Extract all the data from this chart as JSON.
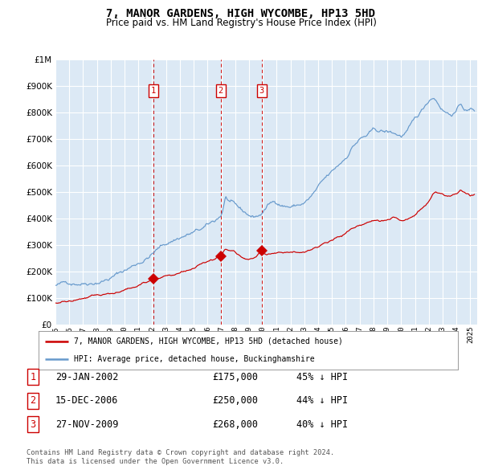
{
  "title": "7, MANOR GARDENS, HIGH WYCOMBE, HP13 5HD",
  "subtitle": "Price paid vs. HM Land Registry's House Price Index (HPI)",
  "footer": "Contains HM Land Registry data © Crown copyright and database right 2024.\nThis data is licensed under the Open Government Licence v3.0.",
  "legend_line1": "7, MANOR GARDENS, HIGH WYCOMBE, HP13 5HD (detached house)",
  "legend_line2": "HPI: Average price, detached house, Buckinghamshire",
  "transactions": [
    {
      "num": 1,
      "date": "29-JAN-2002",
      "price": 175000,
      "pct": "45%",
      "dir": "↓",
      "x_year": 2002.08
    },
    {
      "num": 2,
      "date": "15-DEC-2006",
      "price": 250000,
      "pct": "44%",
      "dir": "↓",
      "x_year": 2006.96
    },
    {
      "num": 3,
      "date": "27-NOV-2009",
      "price": 268000,
      "pct": "40%",
      "dir": "↓",
      "x_year": 2009.91
    }
  ],
  "hpi_color": "#6699cc",
  "sale_color": "#cc0000",
  "vline_color": "#cc0000",
  "plot_bg": "#dce9f5",
  "grid_color": "#c8d8e8",
  "ylim": [
    0,
    1000000
  ],
  "xlim_start": 1995.0,
  "xlim_end": 2025.5,
  "hpi_anchors": [
    [
      1995.0,
      148000
    ],
    [
      1995.5,
      152000
    ],
    [
      1996.0,
      157000
    ],
    [
      1996.5,
      162000
    ],
    [
      1997.0,
      168000
    ],
    [
      1997.5,
      175000
    ],
    [
      1998.0,
      183000
    ],
    [
      1998.5,
      192000
    ],
    [
      1999.0,
      202000
    ],
    [
      1999.5,
      215000
    ],
    [
      2000.0,
      228000
    ],
    [
      2000.5,
      242000
    ],
    [
      2001.0,
      258000
    ],
    [
      2001.5,
      275000
    ],
    [
      2002.0,
      295000
    ],
    [
      2002.5,
      315000
    ],
    [
      2003.0,
      330000
    ],
    [
      2003.5,
      345000
    ],
    [
      2004.0,
      358000
    ],
    [
      2004.5,
      368000
    ],
    [
      2005.0,
      375000
    ],
    [
      2005.5,
      382000
    ],
    [
      2006.0,
      392000
    ],
    [
      2006.5,
      405000
    ],
    [
      2007.0,
      430000
    ],
    [
      2007.3,
      498000
    ],
    [
      2007.8,
      470000
    ],
    [
      2008.0,
      455000
    ],
    [
      2008.5,
      430000
    ],
    [
      2009.0,
      415000
    ],
    [
      2009.3,
      408000
    ],
    [
      2009.5,
      412000
    ],
    [
      2009.8,
      415000
    ],
    [
      2010.0,
      430000
    ],
    [
      2010.5,
      458000
    ],
    [
      2011.0,
      465000
    ],
    [
      2011.5,
      458000
    ],
    [
      2012.0,
      455000
    ],
    [
      2012.5,
      460000
    ],
    [
      2013.0,
      468000
    ],
    [
      2013.5,
      490000
    ],
    [
      2014.0,
      520000
    ],
    [
      2014.5,
      545000
    ],
    [
      2015.0,
      565000
    ],
    [
      2015.5,
      590000
    ],
    [
      2016.0,
      620000
    ],
    [
      2016.5,
      668000
    ],
    [
      2017.0,
      695000
    ],
    [
      2017.5,
      705000
    ],
    [
      2018.0,
      718000
    ],
    [
      2018.5,
      715000
    ],
    [
      2019.0,
      710000
    ],
    [
      2019.5,
      705000
    ],
    [
      2020.0,
      695000
    ],
    [
      2020.5,
      715000
    ],
    [
      2021.0,
      745000
    ],
    [
      2021.5,
      778000
    ],
    [
      2022.0,
      820000
    ],
    [
      2022.3,
      838000
    ],
    [
      2022.5,
      830000
    ],
    [
      2023.0,
      798000
    ],
    [
      2023.5,
      782000
    ],
    [
      2024.0,
      795000
    ],
    [
      2024.3,
      820000
    ],
    [
      2024.5,
      808000
    ],
    [
      2024.8,
      795000
    ],
    [
      2025.0,
      800000
    ],
    [
      2025.3,
      798000
    ]
  ],
  "sale_anchors": [
    [
      1995.0,
      82000
    ],
    [
      1995.5,
      85000
    ],
    [
      1996.0,
      88000
    ],
    [
      1996.5,
      91000
    ],
    [
      1997.0,
      95000
    ],
    [
      1997.5,
      99000
    ],
    [
      1998.0,
      103000
    ],
    [
      1998.5,
      107000
    ],
    [
      1999.0,
      111000
    ],
    [
      1999.5,
      117000
    ],
    [
      2000.0,
      124000
    ],
    [
      2000.5,
      132000
    ],
    [
      2001.0,
      140000
    ],
    [
      2001.5,
      158000
    ],
    [
      2002.0,
      172000
    ],
    [
      2002.08,
      175000
    ],
    [
      2002.5,
      180000
    ],
    [
      2003.0,
      186000
    ],
    [
      2003.5,
      192000
    ],
    [
      2004.0,
      198000
    ],
    [
      2004.5,
      205000
    ],
    [
      2005.0,
      212000
    ],
    [
      2005.5,
      220000
    ],
    [
      2006.0,
      228000
    ],
    [
      2006.5,
      238000
    ],
    [
      2006.96,
      250000
    ],
    [
      2007.0,
      252000
    ],
    [
      2007.3,
      275000
    ],
    [
      2007.8,
      268000
    ],
    [
      2008.0,
      260000
    ],
    [
      2008.5,
      242000
    ],
    [
      2009.0,
      238000
    ],
    [
      2009.5,
      240000
    ],
    [
      2009.91,
      268000
    ],
    [
      2010.0,
      255000
    ],
    [
      2010.3,
      248000
    ],
    [
      2010.5,
      252000
    ],
    [
      2011.0,
      260000
    ],
    [
      2011.5,
      265000
    ],
    [
      2012.0,
      265000
    ],
    [
      2012.5,
      268000
    ],
    [
      2013.0,
      272000
    ],
    [
      2013.5,
      280000
    ],
    [
      2014.0,
      292000
    ],
    [
      2014.5,
      308000
    ],
    [
      2015.0,
      318000
    ],
    [
      2015.5,
      330000
    ],
    [
      2016.0,
      342000
    ],
    [
      2016.5,
      358000
    ],
    [
      2017.0,
      370000
    ],
    [
      2017.5,
      378000
    ],
    [
      2018.0,
      388000
    ],
    [
      2018.5,
      392000
    ],
    [
      2019.0,
      398000
    ],
    [
      2019.5,
      408000
    ],
    [
      2020.0,
      395000
    ],
    [
      2020.5,
      405000
    ],
    [
      2021.0,
      418000
    ],
    [
      2021.5,
      438000
    ],
    [
      2022.0,
      462000
    ],
    [
      2022.3,
      488000
    ],
    [
      2022.5,
      495000
    ],
    [
      2023.0,
      480000
    ],
    [
      2023.5,
      468000
    ],
    [
      2024.0,
      478000
    ],
    [
      2024.3,
      495000
    ],
    [
      2024.5,
      490000
    ],
    [
      2024.8,
      478000
    ],
    [
      2025.0,
      472000
    ],
    [
      2025.3,
      478000
    ]
  ]
}
